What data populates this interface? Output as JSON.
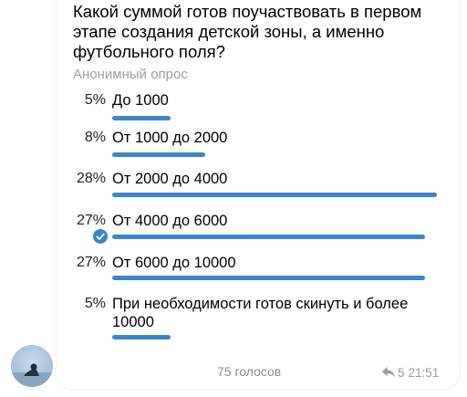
{
  "poll": {
    "question": "Какой суммой готов поучаствовать в первом этапе создания детской зоны, а именно футбольного поля?",
    "type_label": "Анонимный опрос",
    "options": [
      {
        "percent": "5%",
        "label": "До 1000",
        "fraction": 0.05
      },
      {
        "percent": "8%",
        "label": "От 1000 до 2000",
        "fraction": 0.08
      },
      {
        "percent": "28%",
        "label": "От 2000 до 4000",
        "fraction": 0.28
      },
      {
        "percent": "27%",
        "label": "От 4000 до 6000",
        "fraction": 0.27,
        "selected": true
      },
      {
        "percent": "27%",
        "label": "От 6000 до 10000",
        "fraction": 0.27
      },
      {
        "percent": "5%",
        "label": "При необходимости готов скинуть и более 10000",
        "fraction": 0.05
      }
    ],
    "votes_label": "75 голосов",
    "replies_count": "5",
    "time": "21:51"
  },
  "colors": {
    "accent": "#3a86c8",
    "muted": "#a0a0a6"
  },
  "icons": {
    "selected": "check-icon",
    "replies": "reply-arrow-icon"
  }
}
